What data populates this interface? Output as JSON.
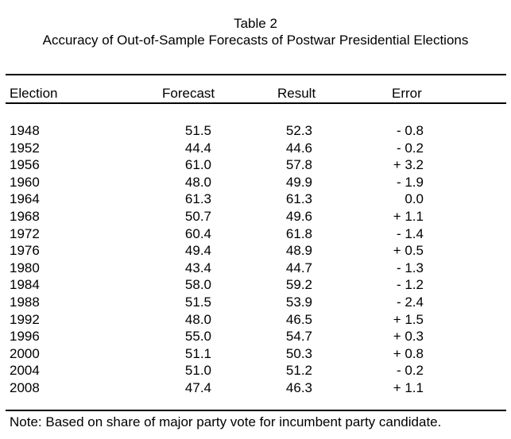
{
  "title_line1": "Table 2",
  "title_line2": "Accuracy of Out-of-Sample Forecasts of Postwar Presidential Elections",
  "headers": {
    "election": "Election",
    "forecast": "Forecast",
    "result": "Result",
    "error": "Error"
  },
  "rows": [
    {
      "year": "1948",
      "forecast": "51.5",
      "result": "52.3",
      "error": "- 0.8"
    },
    {
      "year": "1952",
      "forecast": "44.4",
      "result": "44.6",
      "error": "- 0.2"
    },
    {
      "year": "1956",
      "forecast": "61.0",
      "result": "57.8",
      "error": "+ 3.2"
    },
    {
      "year": "1960",
      "forecast": "48.0",
      "result": "49.9",
      "error": "- 1.9"
    },
    {
      "year": "1964",
      "forecast": "61.3",
      "result": "61.3",
      "error": "0.0"
    },
    {
      "year": "1968",
      "forecast": "50.7",
      "result": "49.6",
      "error": "+ 1.1"
    },
    {
      "year": "1972",
      "forecast": "60.4",
      "result": "61.8",
      "error": "- 1.4"
    },
    {
      "year": "1976",
      "forecast": "49.4",
      "result": "48.9",
      "error": "+ 0.5"
    },
    {
      "year": "1980",
      "forecast": "43.4",
      "result": "44.7",
      "error": "- 1.3"
    },
    {
      "year": "1984",
      "forecast": "58.0",
      "result": "59.2",
      "error": "- 1.2"
    },
    {
      "year": "1988",
      "forecast": "51.5",
      "result": "53.9",
      "error": "- 2.4"
    },
    {
      "year": "1992",
      "forecast": "48.0",
      "result": "46.5",
      "error": "+ 1.5"
    },
    {
      "year": "1996",
      "forecast": "55.0",
      "result": "54.7",
      "error": "+ 0.3"
    },
    {
      "year": "2000",
      "forecast": "51.1",
      "result": "50.3",
      "error": "+ 0.8"
    },
    {
      "year": "2004",
      "forecast": "51.0",
      "result": "51.2",
      "error": "- 0.2"
    },
    {
      "year": "2008",
      "forecast": "47.4",
      "result": "46.3",
      "error": "+ 1.1"
    }
  ],
  "note": "Note: Based on share of major party vote for incumbent party candidate."
}
